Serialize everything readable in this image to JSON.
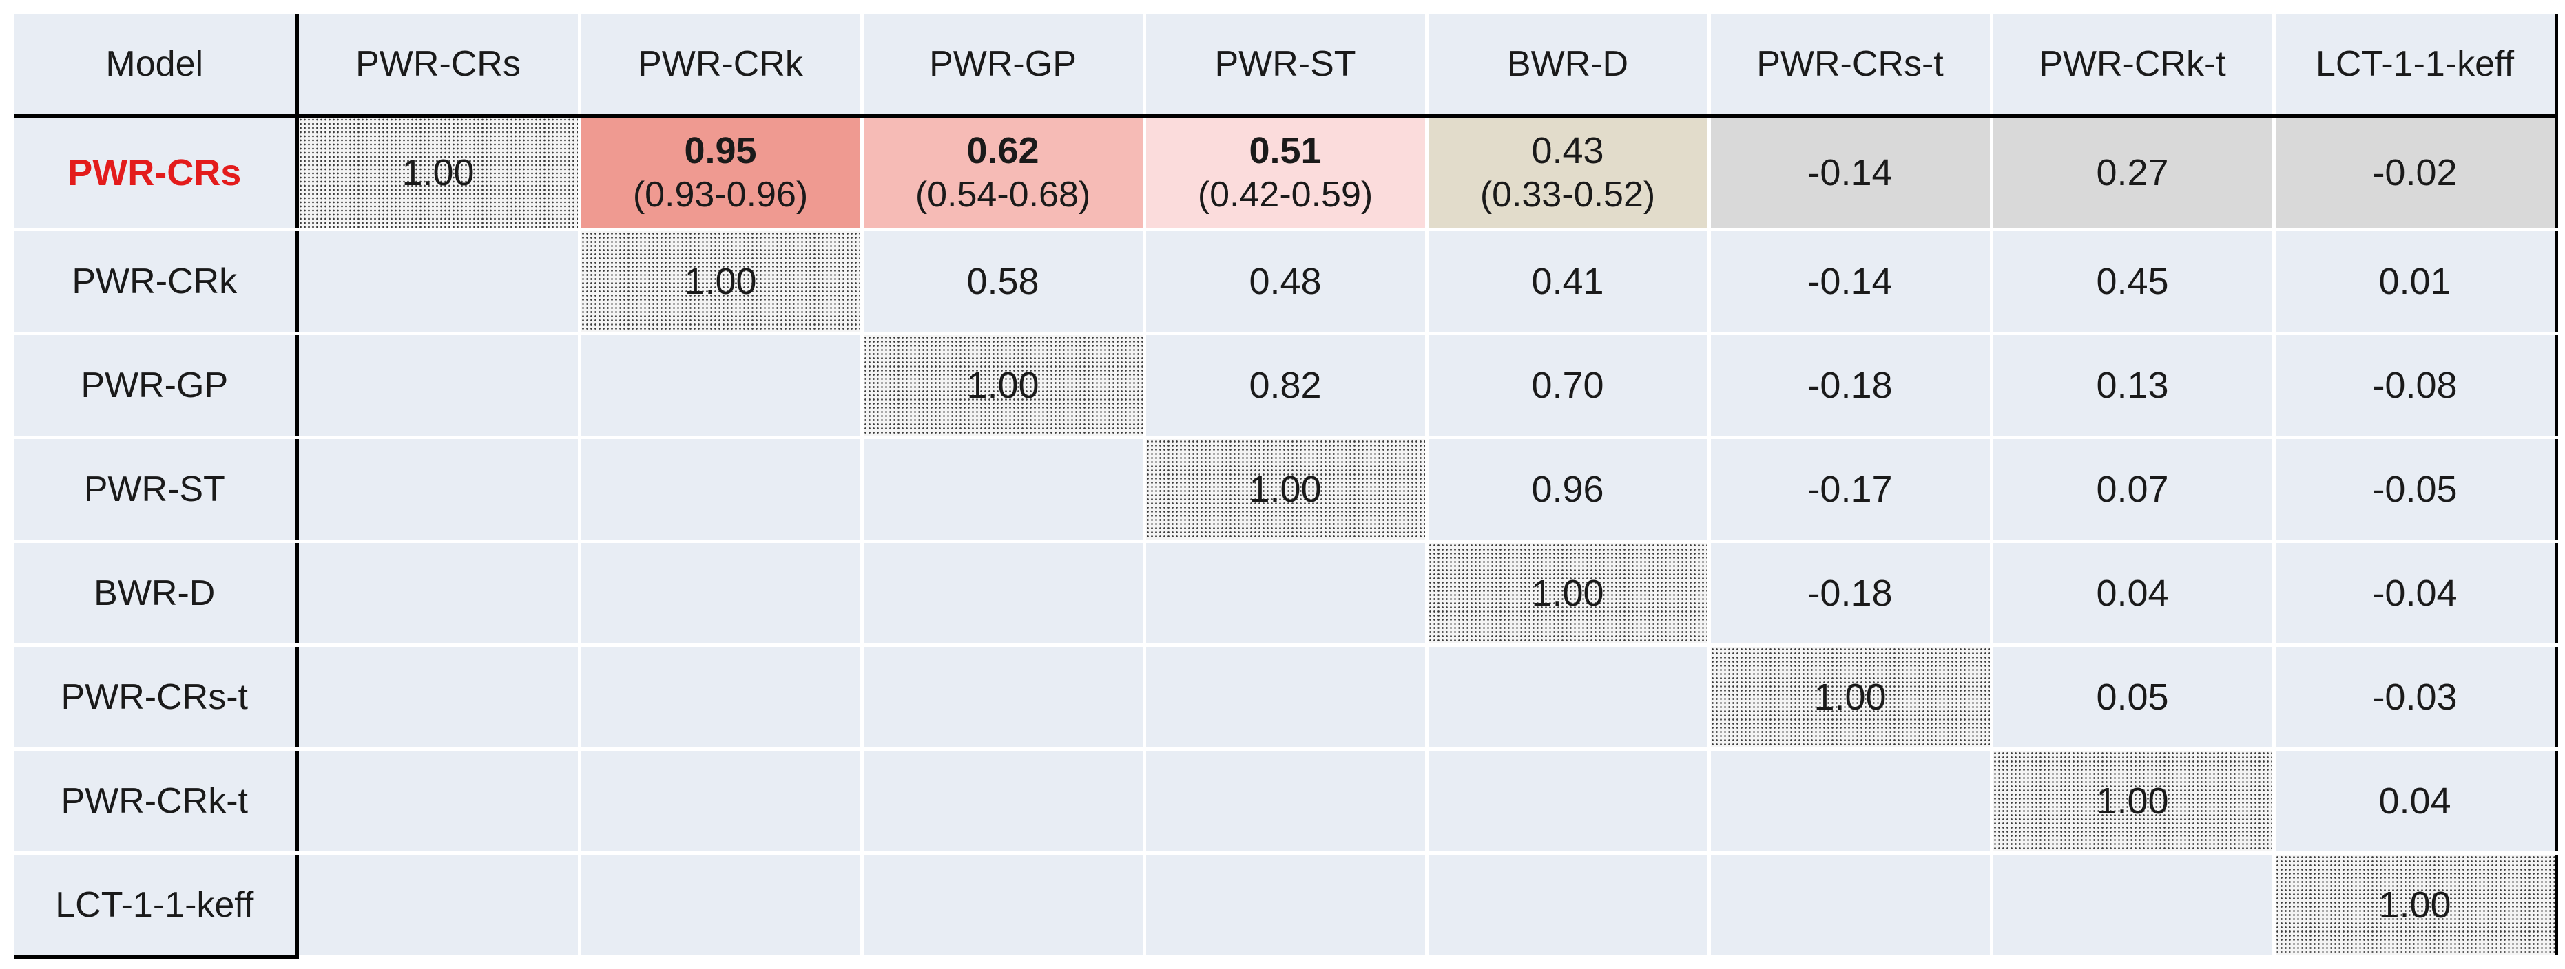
{
  "chart_data": {
    "type": "table",
    "corner_label": "Model",
    "columns": [
      "PWR-CRs",
      "PWR-CRk",
      "PWR-GP",
      "PWR-ST",
      "BWR-D",
      "PWR-CRs-t",
      "PWR-CRk-t",
      "LCT-1-1-keff"
    ],
    "rows": [
      "PWR-CRs",
      "PWR-CRk",
      "PWR-GP",
      "PWR-ST",
      "BWR-D",
      "PWR-CRs-t",
      "PWR-CRk-t",
      "LCT-1-1-keff"
    ],
    "highlighted_row": "PWR-CRs",
    "cells": [
      [
        {
          "value": "1.00",
          "style": "diag"
        },
        {
          "value": "0.95",
          "ci": "(0.93-0.96)",
          "bold": true,
          "color": "#ef9a91"
        },
        {
          "value": "0.62",
          "ci": "(0.54-0.68)",
          "bold": true,
          "color": "#f6bbb6"
        },
        {
          "value": "0.51",
          "ci": "(0.42-0.59)",
          "bold": true,
          "color": "#fbdcdc"
        },
        {
          "value": "0.43",
          "ci": "(0.33-0.52)",
          "color": "#e2dccb"
        },
        {
          "value": "-0.14",
          "color": "#d9d9d9"
        },
        {
          "value": "0.27",
          "color": "#d9d9d9"
        },
        {
          "value": "-0.02",
          "color": "#d9d9d9"
        }
      ],
      [
        {
          "value": ""
        },
        {
          "value": "1.00",
          "style": "diag"
        },
        {
          "value": "0.58"
        },
        {
          "value": "0.48"
        },
        {
          "value": "0.41"
        },
        {
          "value": "-0.14"
        },
        {
          "value": "0.45"
        },
        {
          "value": "0.01"
        }
      ],
      [
        {
          "value": ""
        },
        {
          "value": ""
        },
        {
          "value": "1.00",
          "style": "diag"
        },
        {
          "value": "0.82"
        },
        {
          "value": "0.70"
        },
        {
          "value": "-0.18"
        },
        {
          "value": "0.13"
        },
        {
          "value": "-0.08"
        }
      ],
      [
        {
          "value": ""
        },
        {
          "value": ""
        },
        {
          "value": ""
        },
        {
          "value": "1.00",
          "style": "diag"
        },
        {
          "value": "0.96"
        },
        {
          "value": "-0.17"
        },
        {
          "value": "0.07"
        },
        {
          "value": "-0.05"
        }
      ],
      [
        {
          "value": ""
        },
        {
          "value": ""
        },
        {
          "value": ""
        },
        {
          "value": ""
        },
        {
          "value": "1.00",
          "style": "diag"
        },
        {
          "value": "-0.18"
        },
        {
          "value": "0.04"
        },
        {
          "value": "-0.04"
        }
      ],
      [
        {
          "value": ""
        },
        {
          "value": ""
        },
        {
          "value": ""
        },
        {
          "value": ""
        },
        {
          "value": ""
        },
        {
          "value": "1.00",
          "style": "diag"
        },
        {
          "value": "0.05"
        },
        {
          "value": "-0.03"
        }
      ],
      [
        {
          "value": ""
        },
        {
          "value": ""
        },
        {
          "value": ""
        },
        {
          "value": ""
        },
        {
          "value": ""
        },
        {
          "value": ""
        },
        {
          "value": "1.00",
          "style": "diag"
        },
        {
          "value": "0.04"
        }
      ],
      [
        {
          "value": ""
        },
        {
          "value": ""
        },
        {
          "value": ""
        },
        {
          "value": ""
        },
        {
          "value": ""
        },
        {
          "value": ""
        },
        {
          "value": ""
        },
        {
          "value": "1.00",
          "style": "diag"
        }
      ]
    ],
    "colors": {
      "cell_background": "#e8edf4",
      "highlight_label": "#e31c1c",
      "divider": "#000000"
    }
  }
}
